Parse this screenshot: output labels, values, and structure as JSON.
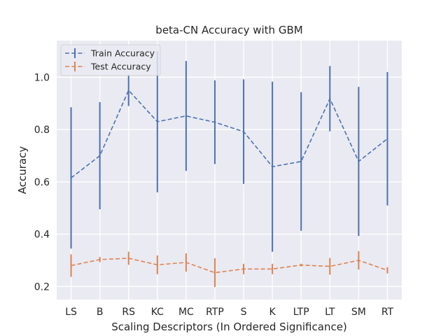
{
  "chart_data": {
    "type": "line",
    "title": "beta-CN Accuracy with GBM",
    "xlabel": "Scaling Descriptors (In Ordered Significance)",
    "ylabel": "Accuracy",
    "categories": [
      "LS",
      "B",
      "RS",
      "KC",
      "MC",
      "RTP",
      "S",
      "K",
      "LTP",
      "LT",
      "SM",
      "RT"
    ],
    "ylim": [
      0.15,
      1.14
    ],
    "yticks": [
      0.2,
      0.4,
      0.6,
      0.8,
      1.0
    ],
    "ytick_labels": [
      "0.2",
      "0.4",
      "0.6",
      "0.8",
      "1.0"
    ],
    "grid": true,
    "legend": "upper-left",
    "series": [
      {
        "name": "Train Accuracy",
        "color": "#4c72b0",
        "values": [
          0.615,
          0.7,
          0.95,
          0.83,
          0.852,
          0.828,
          0.792,
          0.658,
          0.678,
          0.918,
          0.678,
          0.765
        ],
        "errors": [
          0.27,
          0.205,
          0.06,
          0.27,
          0.21,
          0.16,
          0.2,
          0.325,
          0.265,
          0.125,
          0.285,
          0.255
        ]
      },
      {
        "name": "Test Accuracy",
        "color": "#dd8452",
        "values": [
          0.28,
          0.303,
          0.308,
          0.283,
          0.292,
          0.253,
          0.267,
          0.267,
          0.282,
          0.277,
          0.3,
          0.262
        ],
        "errors": [
          0.043,
          0.01,
          0.025,
          0.036,
          0.035,
          0.055,
          0.02,
          0.02,
          0.005,
          0.032,
          0.035,
          0.012
        ]
      }
    ]
  }
}
